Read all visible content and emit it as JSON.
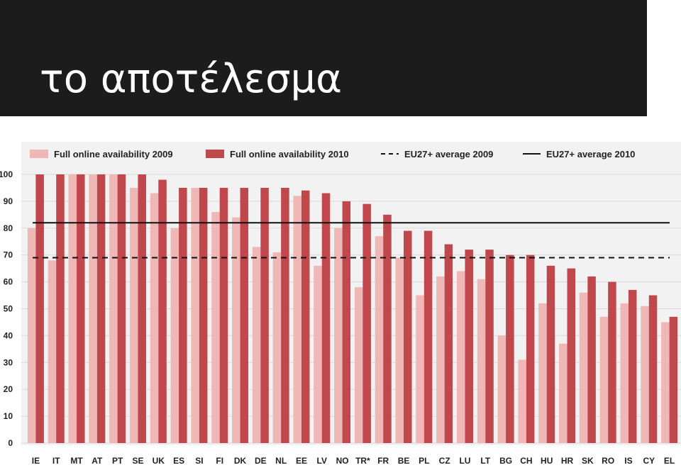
{
  "slide": {
    "title": "το αποτέλεσμα"
  },
  "colors": {
    "title_bg": "#1c1c1c",
    "series_2009": "#f0b7b7",
    "series_2010": "#c0484c",
    "plot_bg": "#f2f2f2",
    "gridline": "#d9d9d9"
  },
  "chart_data": {
    "type": "bar",
    "categories": [
      "IE",
      "IT",
      "MT",
      "AT",
      "PT",
      "SE",
      "UK",
      "ES",
      "SI",
      "FI",
      "DK",
      "DE",
      "NL",
      "EE",
      "LV",
      "NO",
      "TR*",
      "FR",
      "BE",
      "PL",
      "CZ",
      "LU",
      "LT",
      "BG",
      "CH",
      "HU",
      "HR",
      "SK",
      "RO",
      "IS",
      "CY",
      "EL"
    ],
    "series": [
      {
        "name": "Full online availability 2009",
        "values": [
          80,
          68,
          100,
          100,
          100,
          95,
          93,
          80,
          95,
          86,
          84,
          73,
          71,
          92,
          66,
          80,
          58,
          77,
          69,
          55,
          62,
          64,
          61,
          40,
          31,
          52,
          37,
          56,
          47,
          52,
          51,
          45
        ]
      },
      {
        "name": "Full online availability 2010",
        "values": [
          100,
          100,
          100,
          100,
          100,
          100,
          98,
          95,
          95,
          95,
          95,
          95,
          95,
          94,
          93,
          90,
          89,
          85,
          79,
          79,
          74,
          72,
          72,
          70,
          70,
          66,
          65,
          62,
          60,
          57,
          55,
          47
        ]
      }
    ],
    "reference_lines": [
      {
        "name": "EU27+ average 2009",
        "value": 69,
        "style": "dashed"
      },
      {
        "name": "EU27+ average 2010",
        "value": 82,
        "style": "solid"
      }
    ],
    "ylim": [
      0,
      100
    ],
    "yticks": [
      0,
      10,
      20,
      30,
      40,
      50,
      60,
      70,
      80,
      90,
      100
    ],
    "ytick_labels": [
      "0",
      "10",
      "20",
      "30",
      "40",
      "50",
      "60",
      "70",
      "80",
      "90",
      "100"
    ],
    "grid": true,
    "legend_position": "top",
    "xlabel": "",
    "ylabel": ""
  }
}
